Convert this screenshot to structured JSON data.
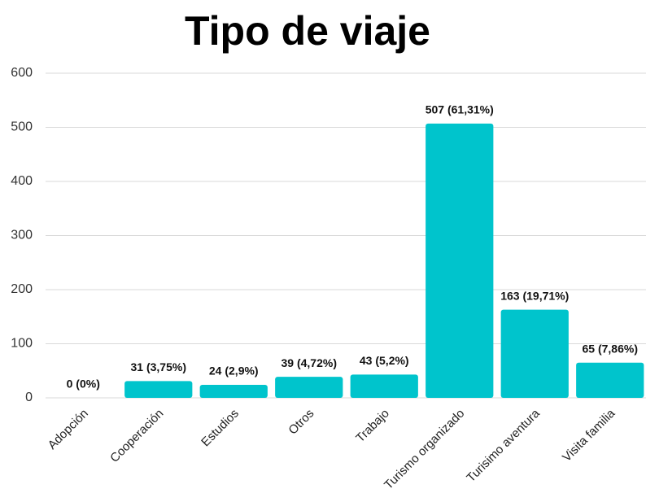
{
  "chart_data": {
    "type": "bar",
    "title": "Tipo de viaje",
    "categories": [
      "Adopción",
      "Cooperación",
      "Estudios",
      "Otros",
      "Trabajo",
      "Turismo organizado",
      "Turisimo aventura",
      "Visita familia"
    ],
    "values": [
      0,
      31,
      24,
      39,
      43,
      507,
      163,
      65
    ],
    "value_labels": [
      "0 (0%)",
      "31 (3,75%)",
      "24 (2,9%)",
      "39 (4,72%)",
      "43 (5,2%)",
      "507 (61,31%)",
      "163 (19,71%)",
      "65 (7,86%)"
    ],
    "color": "#00c4cc",
    "ylim": [
      0,
      600
    ],
    "yticks": [
      0,
      100,
      200,
      300,
      400,
      500,
      600
    ],
    "grid": true
  }
}
